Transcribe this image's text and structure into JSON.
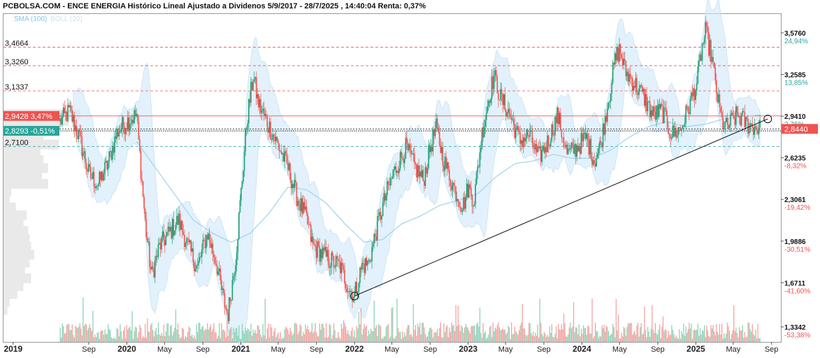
{
  "header": {
    "title": "PCBOLSA.COM - ENCE ENERGIA Histórico Lineal Ajustado a Dividenos 5/9/2017 - 28/7/2025 , 14:40:04 Renta: 0,37%",
    "legend_sma": "SMA (100)",
    "legend_boll": "BOLL (20)"
  },
  "chart_data": {
    "type": "candlestick",
    "x_range": [
      "2018-12-01",
      "2025-10-01"
    ],
    "y_range": [
      1.22,
      3.72
    ],
    "up_color": "#1f9d72",
    "down_color": "#ef5350",
    "band_color": "#cfe8f8",
    "sma_color": "#9fd3f0",
    "right_axis": [
      {
        "value": 3.576,
        "label": "3,5760",
        "pct": "24,94%",
        "pct_color": "#26a69a"
      },
      {
        "value": 3.2585,
        "label": "3,2585",
        "pct": "13,85%",
        "pct_color": "#26a69a"
      },
      {
        "value": 2.941,
        "label": "2,9410",
        "pct": "2,76%",
        "pct_color": "#26a69a"
      },
      {
        "value": 2.6235,
        "label": "2,6235",
        "pct": "-8,32%",
        "pct_color": "#ef5350"
      },
      {
        "value": 2.3061,
        "label": "2,3061",
        "pct": "-19,42%",
        "pct_color": "#ef5350"
      },
      {
        "value": 1.9886,
        "label": "1,9886",
        "pct": "-30,51%",
        "pct_color": "#ef5350"
      },
      {
        "value": 1.6711,
        "label": "1,6711",
        "pct": "-41,60%",
        "pct_color": "#ef5350"
      },
      {
        "value": 1.3342,
        "label": "1,3342",
        "pct": "-53,38%",
        "pct_color": "#ef5350"
      }
    ],
    "current_price": {
      "value": 2.844,
      "label": "2,8440",
      "color": "#ef5350"
    },
    "levels": [
      {
        "value": 3.4664,
        "label": "3,4664",
        "style": "red-dashed"
      },
      {
        "value": 3.326,
        "label": "3,3260",
        "style": "red-dashed"
      },
      {
        "value": 3.1337,
        "label": "3,1337",
        "style": "red-dashed"
      },
      {
        "value": 2.9428,
        "label": "2,9428",
        "tag": "3,47%",
        "style": "red-solid",
        "tag_color": "#ef5350"
      },
      {
        "value": 2.8293,
        "label": "2,8293",
        "tag": "-0,51%",
        "style": "green-solid",
        "tag_color": "#26a69a"
      },
      {
        "value": 2.71,
        "label": "2,7100",
        "style": "green-dashed"
      }
    ],
    "x_ticks": [
      {
        "date": "2019-01-01",
        "label": "2019",
        "major": true
      },
      {
        "date": "2019-09-01",
        "label": "Sep",
        "major": false
      },
      {
        "date": "2020-01-01",
        "label": "2020",
        "major": true
      },
      {
        "date": "2020-05-01",
        "label": "May",
        "major": false
      },
      {
        "date": "2020-09-01",
        "label": "Sep",
        "major": false
      },
      {
        "date": "2021-01-01",
        "label": "2021",
        "major": true
      },
      {
        "date": "2021-05-01",
        "label": "May",
        "major": false
      },
      {
        "date": "2021-09-01",
        "label": "Sep",
        "major": false
      },
      {
        "date": "2022-01-01",
        "label": "2022",
        "major": true
      },
      {
        "date": "2022-05-01",
        "label": "May",
        "major": false
      },
      {
        "date": "2022-09-01",
        "label": "Sep",
        "major": false
      },
      {
        "date": "2023-01-01",
        "label": "2023",
        "major": true
      },
      {
        "date": "2023-05-01",
        "label": "May",
        "major": false
      },
      {
        "date": "2023-09-01",
        "label": "Sep",
        "major": false
      },
      {
        "date": "2024-01-01",
        "label": "2024",
        "major": true
      },
      {
        "date": "2024-05-01",
        "label": "May",
        "major": false
      },
      {
        "date": "2024-09-01",
        "label": "Sep",
        "major": false
      },
      {
        "date": "2025-01-01",
        "label": "2025",
        "major": true
      },
      {
        "date": "2025-05-01",
        "label": "May",
        "major": false
      },
      {
        "date": "2025-09-01",
        "label": "Sep",
        "major": false
      }
    ],
    "price_path": [
      [
        "2019-06-01",
        2.9
      ],
      [
        "2019-07-01",
        2.98
      ],
      [
        "2019-08-01",
        2.78
      ],
      [
        "2019-09-01",
        2.5
      ],
      [
        "2019-10-01",
        2.42
      ],
      [
        "2019-11-01",
        2.58
      ],
      [
        "2019-12-01",
        2.82
      ],
      [
        "2020-01-01",
        2.9
      ],
      [
        "2020-02-01",
        2.95
      ],
      [
        "2020-03-01",
        2.1
      ],
      [
        "2020-03-20",
        1.72
      ],
      [
        "2020-04-15",
        1.95
      ],
      [
        "2020-05-15",
        2.05
      ],
      [
        "2020-06-15",
        2.15
      ],
      [
        "2020-07-15",
        1.95
      ],
      [
        "2020-08-15",
        1.78
      ],
      [
        "2020-09-15",
        2.05
      ],
      [
        "2020-10-15",
        1.82
      ],
      [
        "2020-11-01",
        1.6
      ],
      [
        "2020-11-20",
        1.42
      ],
      [
        "2020-12-15",
        1.85
      ],
      [
        "2021-01-05",
        2.45
      ],
      [
        "2021-01-20",
        2.9
      ],
      [
        "2021-02-10",
        3.25
      ],
      [
        "2021-02-25",
        3.05
      ],
      [
        "2021-03-15",
        2.95
      ],
      [
        "2021-04-10",
        2.82
      ],
      [
        "2021-05-01",
        2.72
      ],
      [
        "2021-06-01",
        2.55
      ],
      [
        "2021-07-01",
        2.32
      ],
      [
        "2021-08-01",
        2.15
      ],
      [
        "2021-08-20",
        1.95
      ],
      [
        "2021-09-15",
        1.9
      ],
      [
        "2021-10-15",
        1.84
      ],
      [
        "2021-11-15",
        1.8
      ],
      [
        "2021-12-15",
        1.62
      ],
      [
        "2022-01-01",
        1.58
      ],
      [
        "2022-01-25",
        1.8
      ],
      [
        "2022-02-15",
        1.82
      ],
      [
        "2022-03-10",
        2.05
      ],
      [
        "2022-04-01",
        2.25
      ],
      [
        "2022-04-20",
        2.4
      ],
      [
        "2022-05-15",
        2.55
      ],
      [
        "2022-06-15",
        2.7
      ],
      [
        "2022-07-15",
        2.55
      ],
      [
        "2022-08-10",
        2.45
      ],
      [
        "2022-09-01",
        2.7
      ],
      [
        "2022-09-20",
        2.85
      ],
      [
        "2022-10-15",
        2.6
      ],
      [
        "2022-11-15",
        2.4
      ],
      [
        "2022-12-15",
        2.25
      ],
      [
        "2023-01-01",
        2.4
      ],
      [
        "2023-01-20",
        2.3
      ],
      [
        "2023-02-15",
        2.82
      ],
      [
        "2023-03-10",
        3.1
      ],
      [
        "2023-03-25",
        3.25
      ],
      [
        "2023-04-15",
        3.08
      ],
      [
        "2023-05-15",
        2.95
      ],
      [
        "2023-06-15",
        2.75
      ],
      [
        "2023-07-15",
        2.8
      ],
      [
        "2023-08-15",
        2.62
      ],
      [
        "2023-09-15",
        2.75
      ],
      [
        "2023-10-15",
        2.95
      ],
      [
        "2023-11-15",
        2.65
      ],
      [
        "2023-12-15",
        2.7
      ],
      [
        "2024-01-15",
        2.78
      ],
      [
        "2024-02-10",
        2.6
      ],
      [
        "2024-03-01",
        2.72
      ],
      [
        "2024-03-25",
        3.05
      ],
      [
        "2024-04-15",
        3.35
      ],
      [
        "2024-05-01",
        3.45
      ],
      [
        "2024-05-20",
        3.28
      ],
      [
        "2024-06-15",
        3.2
      ],
      [
        "2024-07-15",
        3.1
      ],
      [
        "2024-08-15",
        2.95
      ],
      [
        "2024-09-15",
        2.98
      ],
      [
        "2024-10-15",
        2.8
      ],
      [
        "2024-11-15",
        2.85
      ],
      [
        "2024-12-15",
        3.05
      ],
      [
        "2025-01-05",
        3.2
      ],
      [
        "2025-01-20",
        3.45
      ],
      [
        "2025-02-01",
        3.58
      ],
      [
        "2025-02-20",
        3.4
      ],
      [
        "2025-03-10",
        3.1
      ],
      [
        "2025-03-25",
        2.9
      ],
      [
        "2025-04-10",
        2.85
      ],
      [
        "2025-04-25",
        2.9
      ],
      [
        "2025-05-15",
        2.95
      ],
      [
        "2025-06-15",
        2.88
      ],
      [
        "2025-07-10",
        2.86
      ],
      [
        "2025-07-28",
        2.844
      ]
    ],
    "sma_path": [
      [
        "2020-02-01",
        2.75
      ],
      [
        "2020-04-01",
        2.55
      ],
      [
        "2020-06-01",
        2.35
      ],
      [
        "2020-08-01",
        2.15
      ],
      [
        "2020-10-01",
        2.05
      ],
      [
        "2020-12-01",
        1.98
      ],
      [
        "2021-02-01",
        2.05
      ],
      [
        "2021-04-01",
        2.2
      ],
      [
        "2021-06-01",
        2.4
      ],
      [
        "2021-08-01",
        2.38
      ],
      [
        "2021-10-01",
        2.28
      ],
      [
        "2021-12-01",
        2.12
      ],
      [
        "2022-02-01",
        1.98
      ],
      [
        "2022-04-01",
        2.0
      ],
      [
        "2022-06-01",
        2.12
      ],
      [
        "2022-08-01",
        2.18
      ],
      [
        "2022-10-01",
        2.26
      ],
      [
        "2022-12-01",
        2.3
      ],
      [
        "2023-02-01",
        2.35
      ],
      [
        "2023-04-01",
        2.48
      ],
      [
        "2023-06-01",
        2.58
      ],
      [
        "2023-08-01",
        2.6
      ],
      [
        "2023-10-01",
        2.65
      ],
      [
        "2023-12-01",
        2.62
      ],
      [
        "2024-02-01",
        2.62
      ],
      [
        "2024-04-01",
        2.68
      ],
      [
        "2024-06-01",
        2.78
      ],
      [
        "2024-08-01",
        2.86
      ],
      [
        "2024-10-01",
        2.9
      ],
      [
        "2024-12-01",
        2.86
      ],
      [
        "2025-02-01",
        2.88
      ],
      [
        "2025-04-01",
        2.92
      ],
      [
        "2025-06-01",
        2.94
      ],
      [
        "2025-07-28",
        2.95
      ]
    ],
    "trendline": [
      [
        "2022-01-01",
        1.57
      ],
      [
        "2025-08-20",
        2.92
      ]
    ],
    "volume_profile": [
      {
        "price": 2.95,
        "fraction": 1.0
      },
      {
        "price": 2.9,
        "fraction": 0.85
      },
      {
        "price": 2.84,
        "fraction": 0.55
      },
      {
        "price": 2.78,
        "fraction": 0.52
      },
      {
        "price": 2.72,
        "fraction": 0.72
      },
      {
        "price": 2.66,
        "fraction": 0.48
      },
      {
        "price": 2.6,
        "fraction": 0.52
      },
      {
        "price": 2.54,
        "fraction": 0.58
      },
      {
        "price": 2.48,
        "fraction": 0.5
      },
      {
        "price": 2.42,
        "fraction": 0.58
      },
      {
        "price": 2.36,
        "fraction": 0.1
      },
      {
        "price": 2.3,
        "fraction": 0.08
      },
      {
        "price": 2.24,
        "fraction": 0.16
      },
      {
        "price": 2.18,
        "fraction": 0.3
      },
      {
        "price": 2.12,
        "fraction": 0.26
      },
      {
        "price": 2.06,
        "fraction": 0.32
      },
      {
        "price": 2.0,
        "fraction": 0.34
      },
      {
        "price": 1.94,
        "fraction": 0.36
      },
      {
        "price": 1.88,
        "fraction": 0.4
      },
      {
        "price": 1.82,
        "fraction": 0.34
      },
      {
        "price": 1.76,
        "fraction": 0.28
      },
      {
        "price": 1.7,
        "fraction": 0.36
      },
      {
        "price": 1.64,
        "fraction": 0.26
      },
      {
        "price": 1.58,
        "fraction": 0.18
      },
      {
        "price": 1.52,
        "fraction": 0.08
      },
      {
        "price": 1.46,
        "fraction": 0.05
      }
    ],
    "volume_max": 1.0,
    "first_candle": "2019-06-01",
    "last_candle": "2025-07-28"
  }
}
